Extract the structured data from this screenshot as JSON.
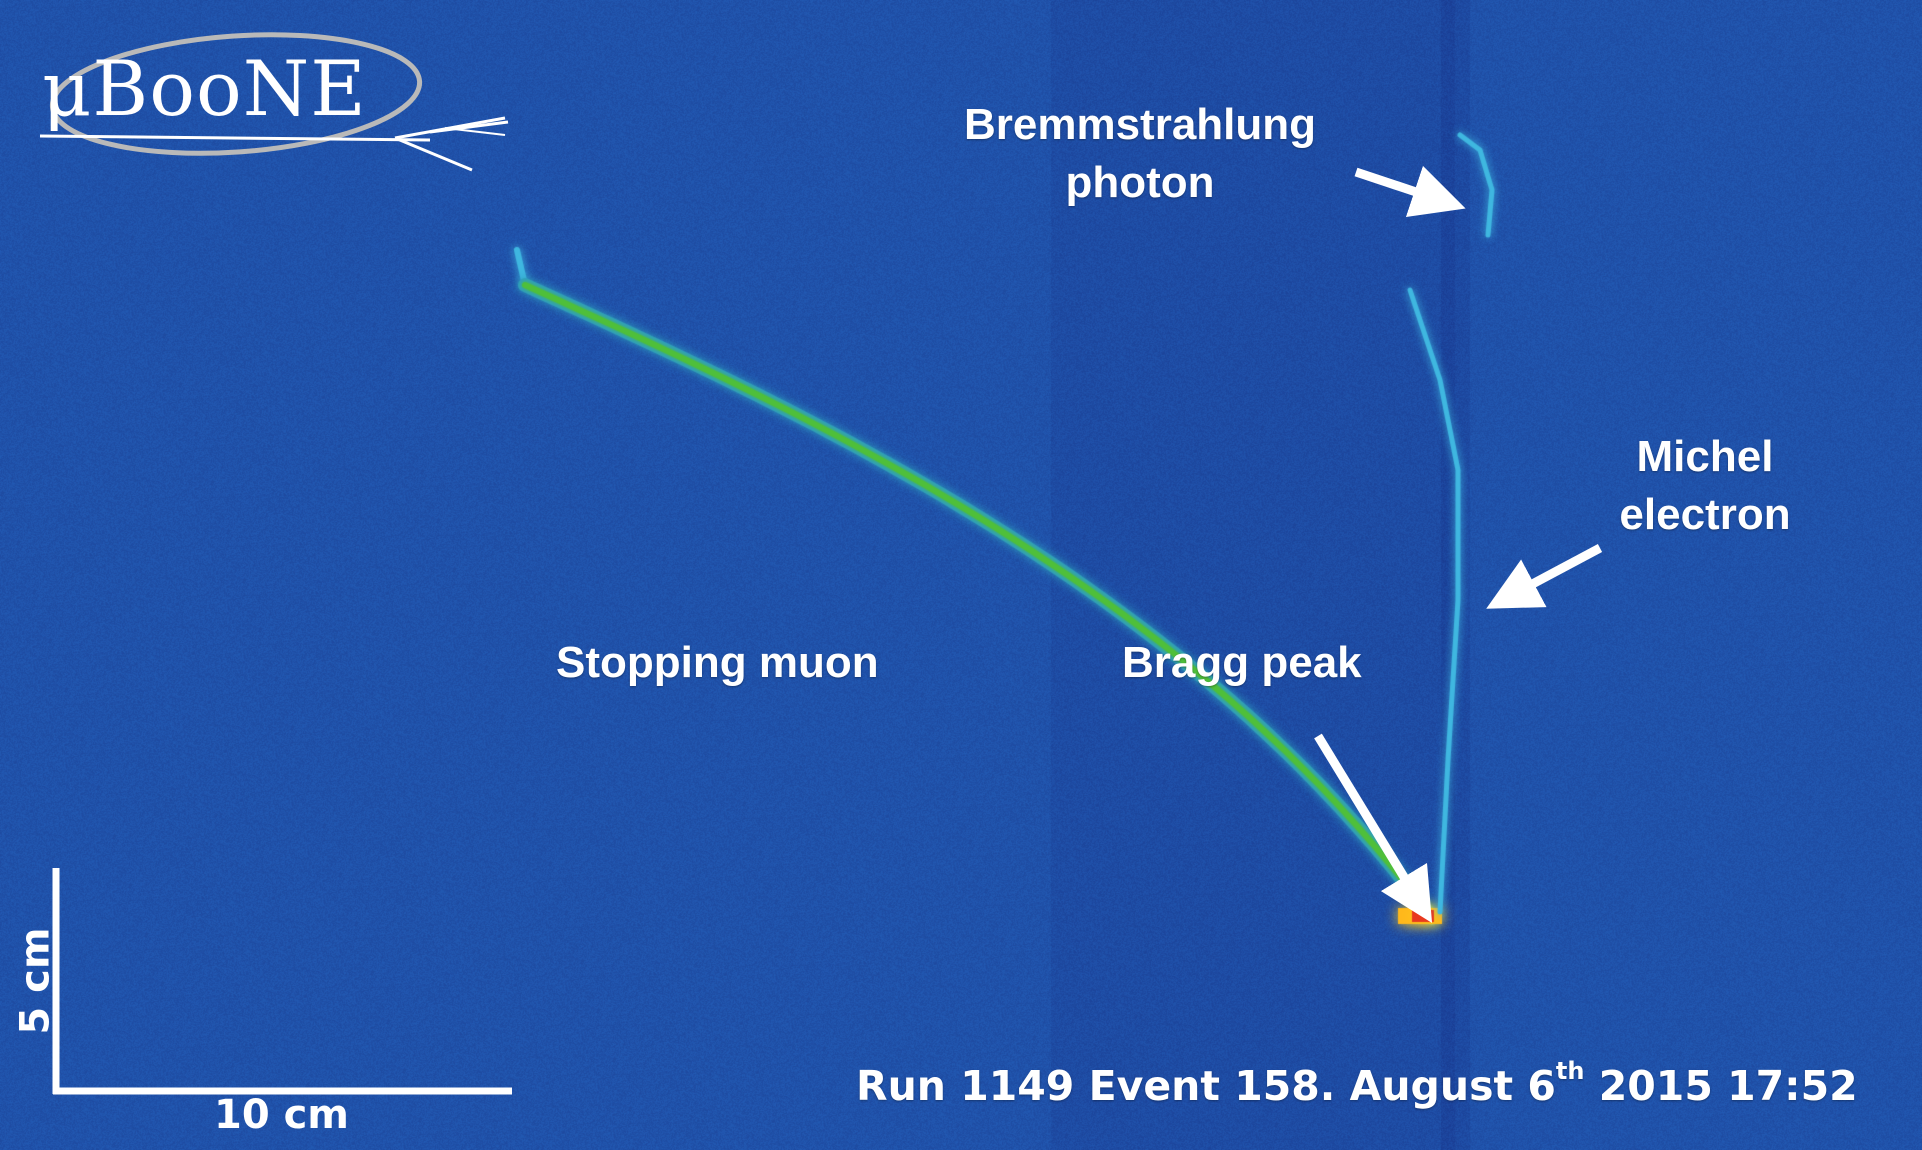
{
  "logo": {
    "text": "μBooNE",
    "icon": "uboone-logo"
  },
  "annotations": {
    "bremsstrahlung_line1": "Bremmstrahlung",
    "bremsstrahlung_line2": "photon",
    "michel_line1": "Michel",
    "michel_line2": "electron",
    "stopping_muon": "Stopping muon",
    "bragg_peak": "Bragg peak"
  },
  "scale_bar": {
    "vertical_label": "5 cm",
    "horizontal_label": "10 cm"
  },
  "run_info": {
    "prefix": "Run 1149 Event 158. August 6",
    "suffix_sup": "th",
    "postfix": " 2015 17:52"
  },
  "colors": {
    "background": "#2152ab",
    "track_green": "#4fbf3a",
    "track_cyan": "#3fb7e0",
    "bragg_red": "#e8391e",
    "text": "#ffffff"
  }
}
